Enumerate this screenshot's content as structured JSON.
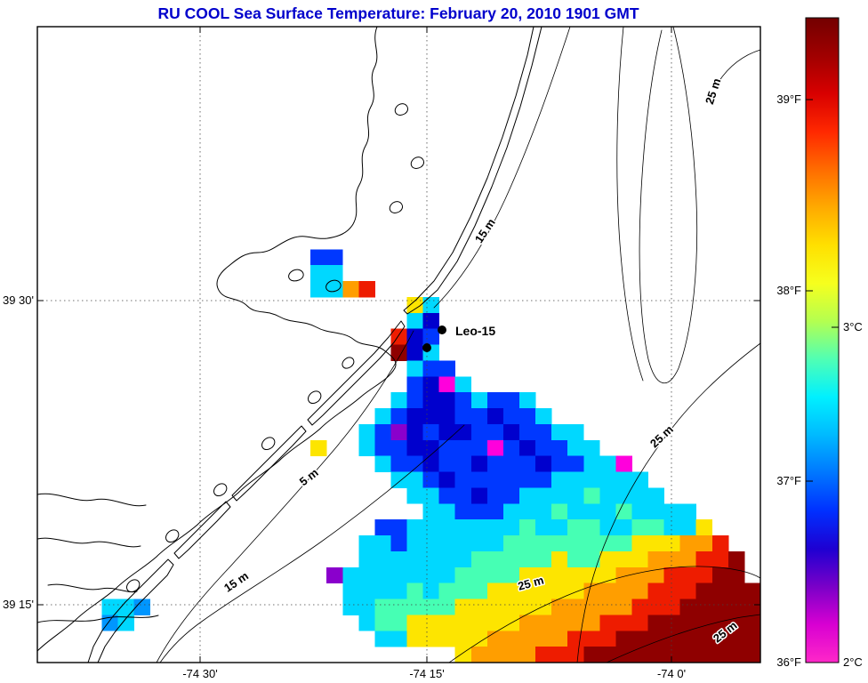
{
  "title": "RU COOL  Sea Surface Temperature:  February 20, 2010 1901 GMT",
  "map": {
    "x_ticks": [
      "-74 30'",
      "-74 15'",
      "-74 0'"
    ],
    "y_ticks": [
      "39 30'",
      "39 15'"
    ],
    "station_label": "Leo-15",
    "depth_labels": [
      "15 m",
      "25 m",
      "5 m",
      "15 m",
      "25 m",
      "25 m",
      "25 m"
    ]
  },
  "colorbar": {
    "f_labels": [
      "39°F",
      "38°F",
      "37°F",
      "36°F"
    ],
    "c_labels": [
      "3°C",
      "2°C"
    ],
    "gradient": [
      "#730000",
      "#a00000",
      "#d80000",
      "#ff2800",
      "#ff6c00",
      "#ffaa00",
      "#ffe000",
      "#f6ff1e",
      "#b4ff50",
      "#50ffb4",
      "#00f0ff",
      "#00baff",
      "#0077ff",
      "#0030ff",
      "#1e00d2",
      "#7a00c8",
      "#d800d2",
      "#ff28c8"
    ]
  },
  "chart_data": {
    "type": "heatmap",
    "title": "RU COOL Sea Surface Temperature: February 20, 2010 1901 GMT",
    "x_axis": {
      "tick_labels": [
        "-74 30'",
        "-74 15'",
        "-74 0'"
      ],
      "lon_range_deg": [
        -74.68,
        -73.91
      ]
    },
    "y_axis": {
      "tick_labels": [
        "39 30'",
        "39 15'"
      ],
      "lat_range_deg": [
        39.2,
        39.73
      ]
    },
    "colorbar": {
      "tick_labels_f": [
        "39°F",
        "38°F",
        "37°F",
        "36°F"
      ],
      "tick_labels_c": [
        "3°C",
        "2°C"
      ],
      "range_f": [
        36.0,
        39.5
      ],
      "range_c": [
        2.0,
        4.2
      ],
      "position": "right"
    },
    "annotations": {
      "station_label": "Leo-15",
      "station_dot_count": 2,
      "depth_contour_labels": [
        "5 m",
        "15 m",
        "25 m"
      ]
    },
    "grid": {
      "cols": 45,
      "rows": 40
    },
    "palette": {
      "R": "#8f0000",
      "r": "#ee1c00",
      "o": "#ff9e00",
      "y": "#fde500",
      "g": "#46ffb4",
      "C": "#00d8ff",
      "b": "#0096ff",
      "B": "#0038ff",
      "D": "#0000cd",
      "m": "#ff00dc",
      "p": "#8a00cc"
    },
    "palette_temp_f": {
      "m": 36.1,
      "p": 36.4,
      "D": 36.7,
      "B": 36.9,
      "b": 37.1,
      "C": 37.4,
      "g": 37.9,
      "y": 38.3,
      "o": 38.7,
      "r": 39.0,
      "R": 39.4
    },
    "runs": [
      [
        14,
        17,
        "BB"
      ],
      [
        15,
        17,
        "CC"
      ],
      [
        16,
        17,
        "CCor"
      ],
      [
        17,
        23,
        "yC"
      ],
      [
        18,
        23,
        "CD"
      ],
      [
        19,
        22,
        "rDB"
      ],
      [
        20,
        22,
        "RDC"
      ],
      [
        21,
        23,
        "CBB"
      ],
      [
        22,
        23,
        "BDmC"
      ],
      [
        23,
        22,
        "CBDDBCBBC"
      ],
      [
        24,
        21,
        "CBDDDBBDBBC"
      ],
      [
        25,
        20,
        "CBpDBDDBBDBBCC"
      ],
      [
        26,
        17,
        "y"
      ],
      [
        26,
        20,
        "CBBDDBBBmBDBBCC"
      ],
      [
        27,
        21,
        "CBBDBBDBBBDBBCCm"
      ],
      [
        28,
        22,
        "CCBDBBBBBBCCCCCC"
      ],
      [
        29,
        23,
        "CCBBDBBCCCCgCCCC"
      ],
      [
        30,
        24,
        "CCBBBCCCgCCCgCCCC"
      ],
      [
        31,
        21,
        "BBCCCCCCCgCCggCCggCCy"
      ],
      [
        32,
        20,
        "CCBCCCCCCggggggggyyyoor"
      ],
      [
        33,
        20,
        "CCCCCCCgggggyggyyyooorrR"
      ],
      [
        34,
        18,
        "pCCCCCCCggggyyyyyyooorrrRR"
      ],
      [
        35,
        19,
        "CCCCgCgggyyyyyyoooorrrRRRR"
      ],
      [
        36,
        4,
        "CCb"
      ],
      [
        36,
        19,
        "CCgggggyyyyyyooooorrrRRRRR"
      ],
      [
        37,
        4,
        "bC"
      ],
      [
        37,
        20,
        "CggyyyyyyyooooorrrRRRRRRR"
      ],
      [
        38,
        21,
        "CCyyyyyooooorrrRRRRRRRRR"
      ],
      [
        39,
        26,
        "yoooorrrRRRRRRRRRRR"
      ]
    ]
  }
}
